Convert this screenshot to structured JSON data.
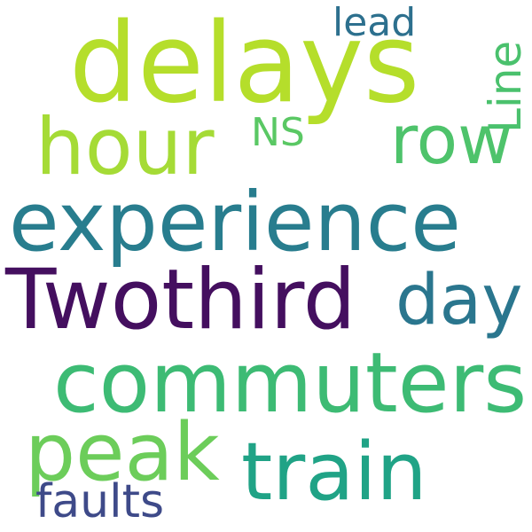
{
  "words": {
    "delays": {
      "text": "delays",
      "color": "#b5de2b"
    },
    "experience": {
      "text": "experience",
      "color": "#287d8e"
    },
    "twothird": {
      "text": "Twothird",
      "color": "#440f5f"
    },
    "commuters": {
      "text": "commuters",
      "color": "#3dbb74"
    },
    "train": {
      "text": "train",
      "color": "#20a386"
    },
    "peak": {
      "text": "peak",
      "color": "#6ccd5a"
    },
    "hour": {
      "text": "hour",
      "color": "#a5db36"
    },
    "day": {
      "text": "day",
      "color": "#2a768e"
    },
    "row": {
      "text": "row",
      "color": "#4ec36b"
    },
    "line": {
      "text": "Line",
      "color": "#4ac16d"
    },
    "ns": {
      "text": "NS",
      "color": "#5ac864"
    },
    "lead": {
      "text": "lead",
      "color": "#2d708e"
    },
    "faults": {
      "text": "faults",
      "color": "#3e4a89"
    }
  }
}
